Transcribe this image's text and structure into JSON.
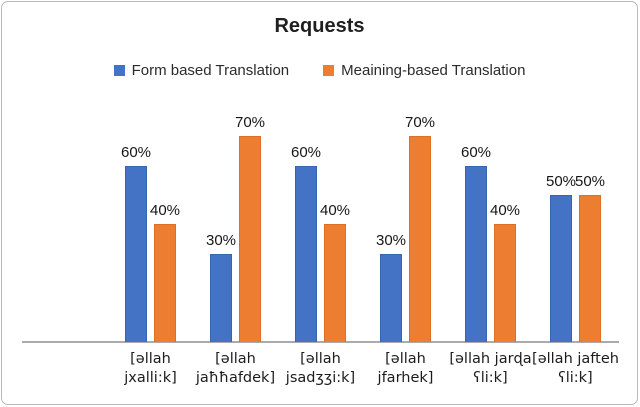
{
  "chart_data": {
    "type": "bar",
    "title": "Requests",
    "categories": [
      "[əllah jxalli:k]",
      "[əllah jaħħafdek]",
      "[əllah jsadʒʒi:k]",
      "[əllah jfarhek]",
      "[əllah jarɖa ʕli:k]",
      "[əllah jafteh ʕli:k]"
    ],
    "tick_lines": [
      [
        "[əllah",
        "jxalli:k]"
      ],
      [
        "[əllah",
        "jaħħafdek]"
      ],
      [
        "[əllah",
        "jsadʒʒi:k]"
      ],
      [
        "[əllah",
        "jfarhek]"
      ],
      [
        "[əllah jarɖa",
        "ʕli:k]"
      ],
      [
        "[əllah jafteh",
        "ʕli:k]"
      ]
    ],
    "series": [
      {
        "name": "Form based Translation",
        "color": "#4472C4",
        "border_color": "#3864B0",
        "values": [
          60,
          30,
          60,
          30,
          60,
          50
        ],
        "data_labels": [
          "60%",
          "30%",
          "60%",
          "30%",
          "60%",
          "50%"
        ]
      },
      {
        "name": "Meaining-based Translation",
        "color": "#ED7D31",
        "border_color": "#DE6F24",
        "values": [
          40,
          70,
          40,
          70,
          40,
          50
        ],
        "data_labels": [
          "40%",
          "70%",
          "40%",
          "70%",
          "40%",
          "50%"
        ]
      }
    ],
    "xlabel": "",
    "ylabel": "",
    "ylim": [
      0,
      80
    ],
    "grid": false,
    "legend_position": "top",
    "axis_line_color": "#ababab",
    "value_suffix": "%"
  }
}
